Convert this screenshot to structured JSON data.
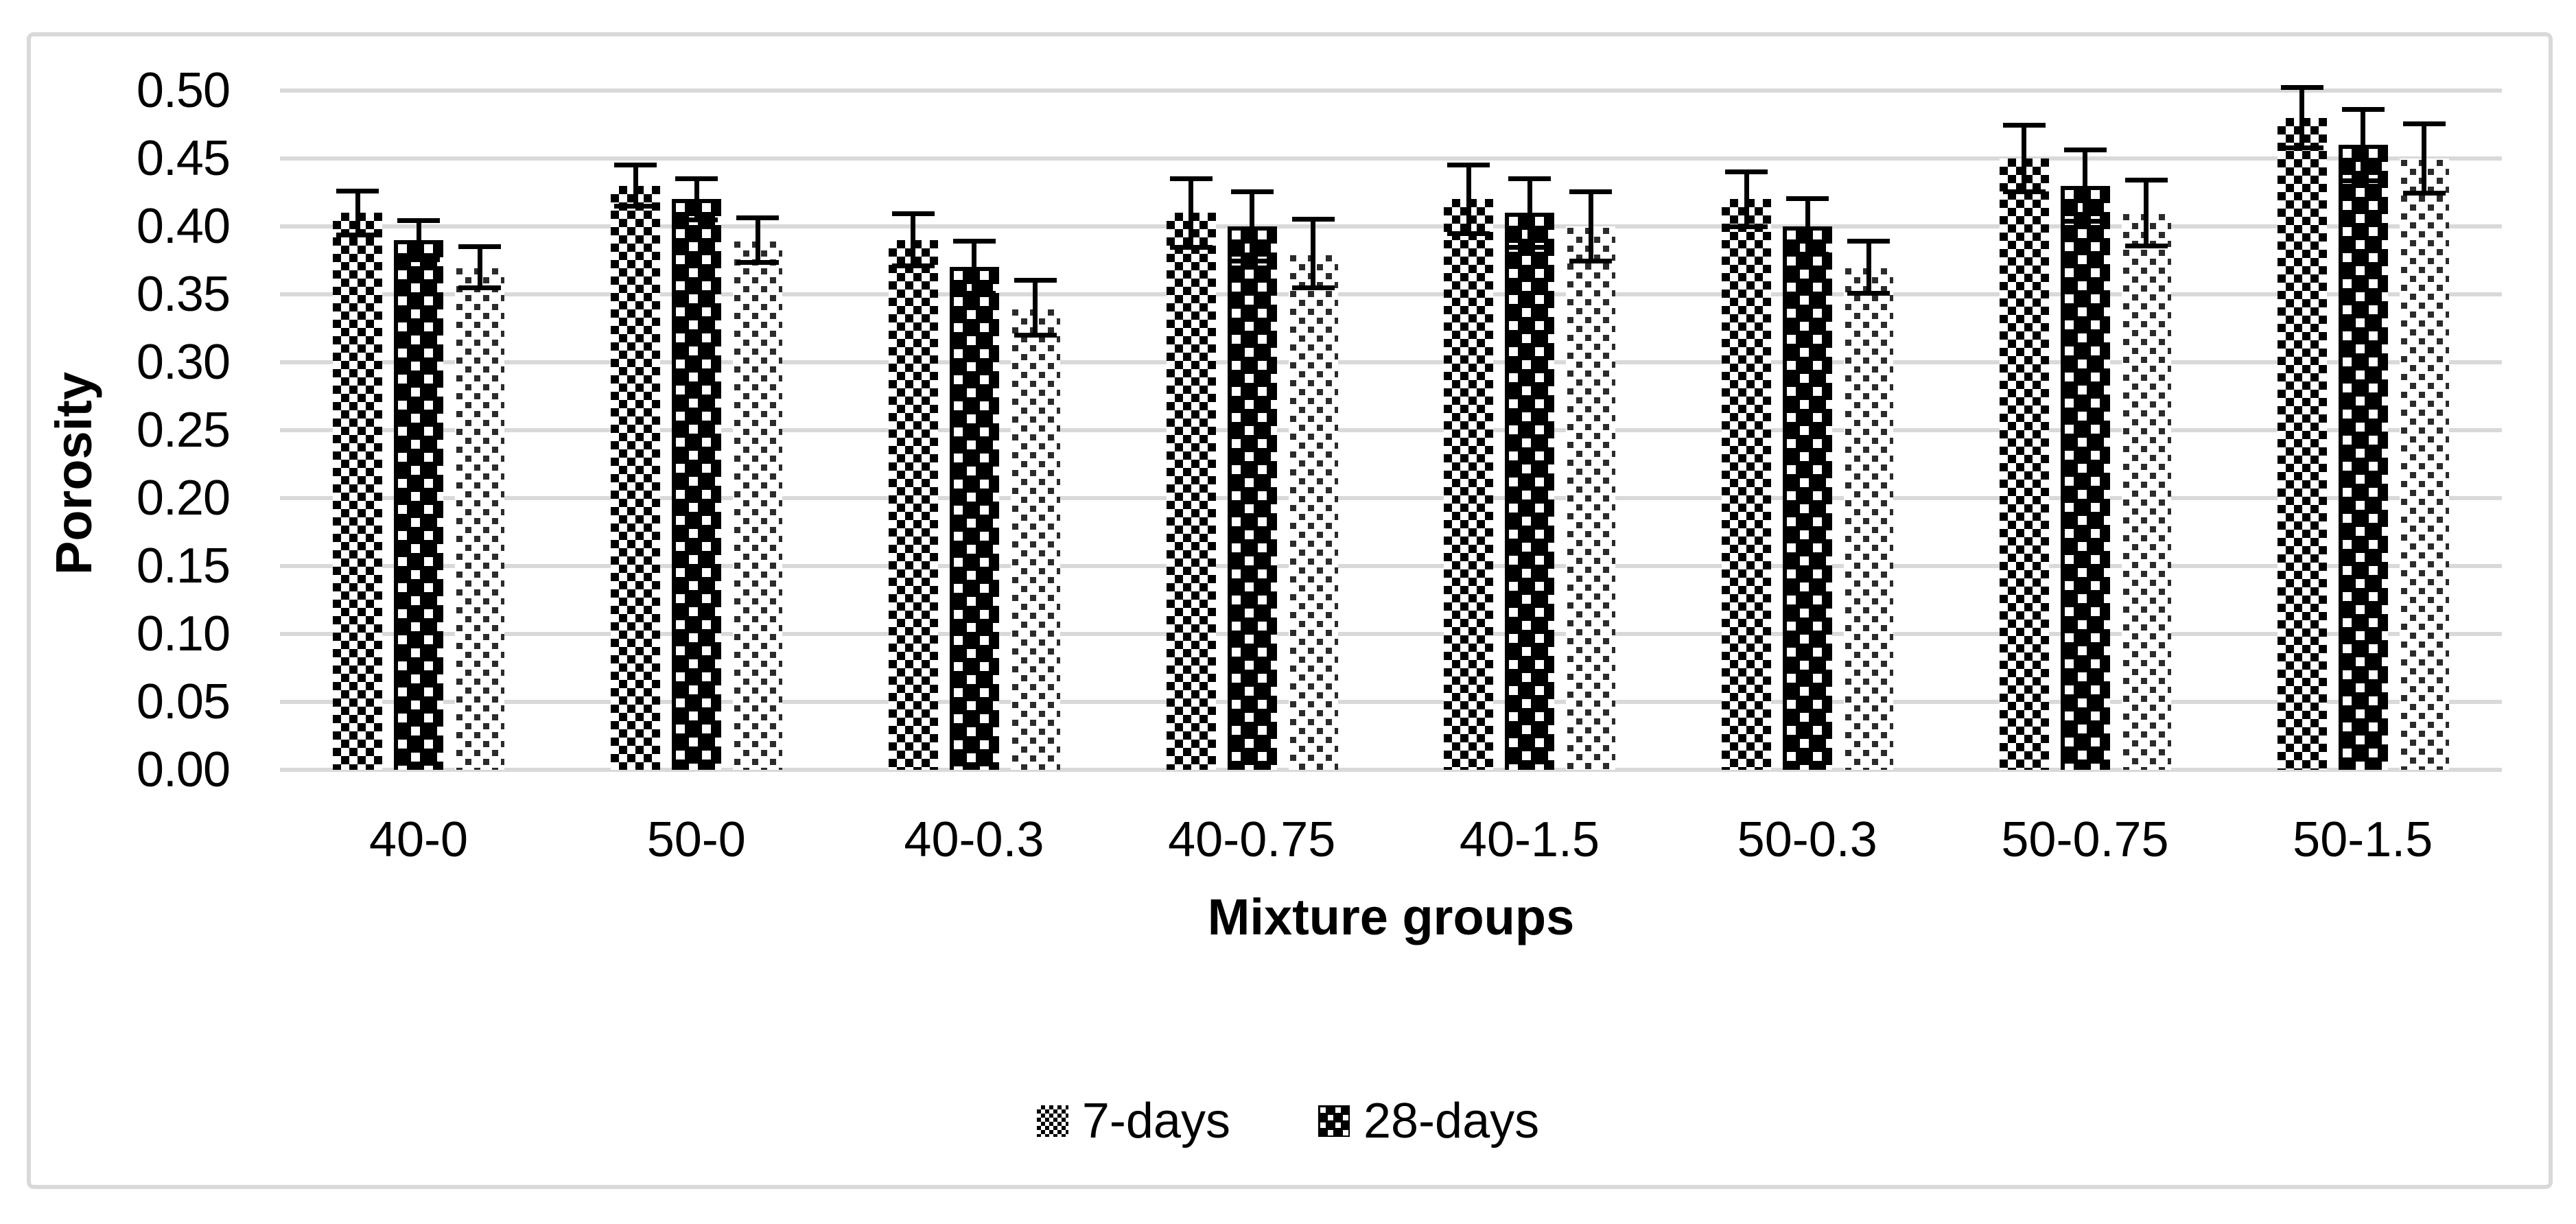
{
  "figure": {
    "frame_border_color": "#d9d9d9",
    "background_color": "#ffffff"
  },
  "chart_data": {
    "type": "bar",
    "title": "",
    "xlabel": "Mixture groups",
    "ylabel": "Porosity",
    "ylim": [
      0,
      0.5
    ],
    "ytick_step": 0.05,
    "y_ticks": [
      "0.00",
      "0.05",
      "0.10",
      "0.15",
      "0.20",
      "0.25",
      "0.30",
      "0.35",
      "0.40",
      "0.45",
      "0.50"
    ],
    "grid": true,
    "grid_color": "#d9d9d9",
    "text_color": "#000000",
    "error_bar_color": "#000000",
    "legend_position": "bottom-center",
    "legend_entries": [
      "7-days",
      "28-days"
    ],
    "categories": [
      "40-0",
      "50-0",
      "40-0.3",
      "40-0.75",
      "40-1.5",
      "50-0.3",
      "50-0.75",
      "50-1.5"
    ],
    "series": [
      {
        "name": "7-days",
        "pattern": "checkerboard",
        "values": [
          0.41,
          0.43,
          0.39,
          0.41,
          0.42,
          0.42,
          0.45,
          0.48
        ],
        "errors": [
          0.015,
          0.014,
          0.018,
          0.024,
          0.024,
          0.019,
          0.023,
          0.021
        ]
      },
      {
        "name": "28-days",
        "pattern": "black-with-white-dots",
        "values": [
          0.39,
          0.42,
          0.37,
          0.4,
          0.41,
          0.4,
          0.43,
          0.46
        ],
        "errors": [
          0.013,
          0.014,
          0.018,
          0.024,
          0.024,
          0.019,
          0.025,
          0.025
        ]
      },
      {
        "name": "",
        "pattern": "white-with-dark-dots",
        "values": [
          0.37,
          0.39,
          0.34,
          0.38,
          0.4,
          0.37,
          0.41,
          0.45
        ],
        "errors": [
          0.014,
          0.015,
          0.019,
          0.024,
          0.024,
          0.018,
          0.023,
          0.024
        ]
      }
    ]
  }
}
